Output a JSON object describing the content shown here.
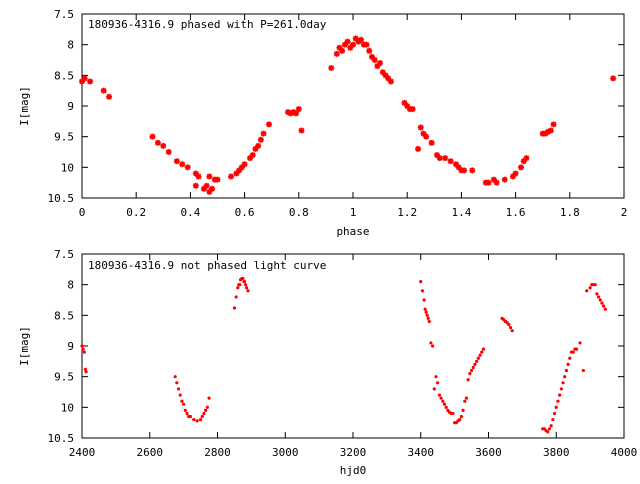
{
  "chart_data": [
    {
      "type": "scatter",
      "title": "180936-4316.9 phased with P=261.0day",
      "xlabel": "phase",
      "ylabel": "I[mag]",
      "xlim": [
        0,
        2
      ],
      "ylim": [
        10.5,
        7.5
      ],
      "y_inverted": true,
      "xticks": [
        "0",
        "0.2",
        "0.4",
        "0.6",
        "0.8",
        "1",
        "1.2",
        "1.4",
        "1.6",
        "1.8",
        "2"
      ],
      "yticks": [
        "7.5",
        "8",
        "8.5",
        "9",
        "9.5",
        "10",
        "10.5"
      ],
      "grid": false,
      "marker": "star",
      "color": "#ff0000",
      "x": [
        0.0,
        0.01,
        0.03,
        0.08,
        0.1,
        0.26,
        0.28,
        0.3,
        0.32,
        0.35,
        0.37,
        0.39,
        0.42,
        0.42,
        0.43,
        0.45,
        0.46,
        0.47,
        0.47,
        0.48,
        0.49,
        0.5,
        0.55,
        0.57,
        0.58,
        0.59,
        0.6,
        0.62,
        0.63,
        0.64,
        0.65,
        0.66,
        0.67,
        0.69,
        0.76,
        0.77,
        0.78,
        0.79,
        0.8,
        0.81,
        0.92,
        0.94,
        0.95,
        0.96,
        0.97,
        0.98,
        0.99,
        1.0,
        1.01,
        1.02,
        1.03,
        1.04,
        1.05,
        1.06,
        1.07,
        1.08,
        1.09,
        1.1,
        1.11,
        1.12,
        1.13,
        1.14,
        1.19,
        1.2,
        1.21,
        1.22,
        1.24,
        1.25,
        1.26,
        1.27,
        1.29,
        1.31,
        1.32,
        1.34,
        1.36,
        1.38,
        1.39,
        1.4,
        1.41,
        1.44,
        1.49,
        1.5,
        1.52,
        1.53,
        1.56,
        1.59,
        1.6,
        1.62,
        1.63,
        1.64,
        1.7,
        1.71,
        1.72,
        1.73,
        1.74,
        1.96
      ],
      "y": [
        8.6,
        8.55,
        8.6,
        8.75,
        8.85,
        9.5,
        9.6,
        9.65,
        9.75,
        9.9,
        9.95,
        10.0,
        10.1,
        10.3,
        10.15,
        10.35,
        10.3,
        10.4,
        10.15,
        10.35,
        10.2,
        10.2,
        10.15,
        10.1,
        10.05,
        10.0,
        9.95,
        9.85,
        9.8,
        9.7,
        9.65,
        9.55,
        9.45,
        9.3,
        9.1,
        9.12,
        9.1,
        9.12,
        9.05,
        9.4,
        8.38,
        8.15,
        8.05,
        8.1,
        8.0,
        7.95,
        8.05,
        8.0,
        7.9,
        7.95,
        7.92,
        8.0,
        8.0,
        8.1,
        8.2,
        8.25,
        8.35,
        8.3,
        8.45,
        8.5,
        8.55,
        8.6,
        8.95,
        9.0,
        9.05,
        9.05,
        9.7,
        9.35,
        9.45,
        9.5,
        9.6,
        9.8,
        9.85,
        9.85,
        9.9,
        9.95,
        10.0,
        10.05,
        10.05,
        10.05,
        10.25,
        10.25,
        10.2,
        10.25,
        10.2,
        10.15,
        10.1,
        10.0,
        9.9,
        9.85,
        9.45,
        9.45,
        9.42,
        9.4,
        9.3,
        8.55
      ]
    },
    {
      "type": "scatter",
      "title": "180936-4316.9 not phased light curve",
      "xlabel": "hjd0",
      "ylabel": "I[mag]",
      "xlim": [
        2400,
        4000
      ],
      "ylim": [
        10.5,
        7.5
      ],
      "y_inverted": true,
      "xticks": [
        "2400",
        "2600",
        "2800",
        "3000",
        "3200",
        "3400",
        "3600",
        "3800",
        "4000"
      ],
      "yticks": [
        "7.5",
        "8",
        "8.5",
        "9",
        "9.5",
        "10",
        "10.5"
      ],
      "grid": false,
      "marker": "dot",
      "color": "#ff0000",
      "x": [
        2400,
        2403,
        2407,
        2410,
        2412,
        2675,
        2680,
        2685,
        2690,
        2695,
        2700,
        2705,
        2710,
        2715,
        2720,
        2730,
        2740,
        2750,
        2755,
        2760,
        2765,
        2770,
        2775,
        2850,
        2855,
        2860,
        2863,
        2866,
        2868,
        2872,
        2875,
        2878,
        2880,
        2883,
        2886,
        2890,
        3400,
        3405,
        3410,
        3413,
        3416,
        3419,
        3422,
        3425,
        3430,
        3435,
        3440,
        3445,
        3450,
        3455,
        3460,
        3465,
        3470,
        3475,
        3480,
        3485,
        3490,
        3495,
        3500,
        3505,
        3510,
        3515,
        3520,
        3525,
        3530,
        3535,
        3540,
        3545,
        3550,
        3555,
        3560,
        3565,
        3570,
        3575,
        3580,
        3585,
        3640,
        3645,
        3650,
        3655,
        3660,
        3665,
        3670,
        3760,
        3765,
        3770,
        3775,
        3780,
        3785,
        3790,
        3795,
        3800,
        3805,
        3810,
        3815,
        3820,
        3825,
        3830,
        3835,
        3840,
        3845,
        3850,
        3855,
        3860,
        3870,
        3880,
        3890,
        3900,
        3905,
        3910,
        3915,
        3920,
        3925,
        3930,
        3935,
        3940,
        3945
      ],
      "y": [
        9.0,
        9.05,
        9.1,
        9.38,
        9.42,
        9.5,
        9.6,
        9.7,
        9.8,
        9.9,
        9.95,
        10.05,
        10.1,
        10.15,
        10.15,
        10.2,
        10.22,
        10.2,
        10.15,
        10.1,
        10.05,
        10.0,
        9.85,
        8.38,
        8.2,
        8.05,
        8.0,
        8.0,
        7.92,
        7.9,
        7.9,
        7.95,
        7.95,
        8.0,
        8.05,
        8.1,
        7.95,
        8.1,
        8.25,
        8.4,
        8.45,
        8.5,
        8.55,
        8.6,
        8.95,
        9.0,
        9.7,
        9.5,
        9.6,
        9.8,
        9.85,
        9.9,
        9.95,
        10.0,
        10.05,
        10.08,
        10.1,
        10.1,
        10.25,
        10.25,
        10.22,
        10.2,
        10.15,
        10.05,
        9.9,
        9.85,
        9.55,
        9.45,
        9.4,
        9.35,
        9.3,
        9.25,
        9.2,
        9.15,
        9.1,
        9.05,
        8.55,
        8.57,
        8.6,
        8.62,
        8.65,
        8.7,
        8.75,
        10.35,
        10.35,
        10.38,
        10.4,
        10.35,
        10.3,
        10.2,
        10.1,
        10.0,
        9.9,
        9.8,
        9.7,
        9.6,
        9.5,
        9.4,
        9.3,
        9.2,
        9.1,
        9.1,
        9.05,
        9.05,
        8.95,
        9.4,
        8.1,
        8.05,
        8.0,
        8.0,
        8.0,
        8.15,
        8.2,
        8.25,
        8.3,
        8.35,
        8.4
      ]
    }
  ]
}
